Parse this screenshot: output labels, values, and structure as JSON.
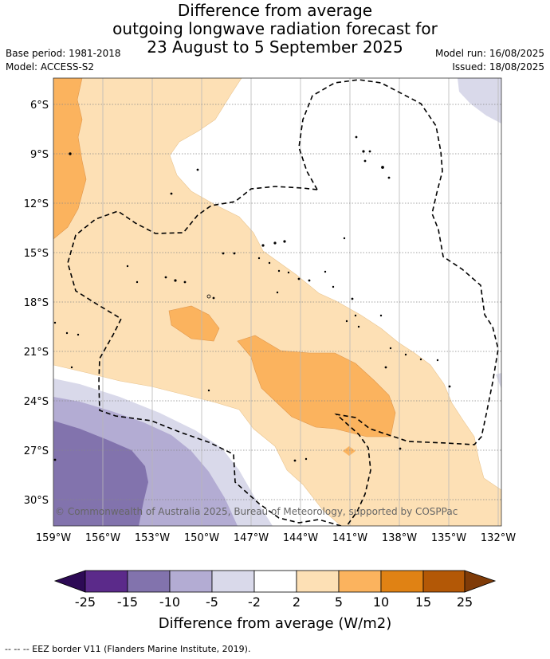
{
  "header": {
    "title_line1": "Difference from average",
    "title_line2": "outgoing longwave radiation forecast for",
    "title_line3": "23 August to 5 September 2025",
    "base_period": "Base period: 1981-2018",
    "model": "Model: ACCESS-S2",
    "model_run": "Model run: 16/08/2025",
    "issued": "Issued: 18/08/2025"
  },
  "map": {
    "copyright": "© Commonwealth of Australia 2025, Bureau of Meteorology, supported by COSPPac",
    "lat_labels": [
      "6°S",
      "9°S",
      "12°S",
      "15°S",
      "18°S",
      "21°S",
      "24°S",
      "27°S",
      "30°S"
    ],
    "lon_labels": [
      "159°W",
      "156°W",
      "153°W",
      "150°W",
      "147°W",
      "144°W",
      "141°W",
      "138°W",
      "135°W",
      "132°W"
    ]
  },
  "colorbar": {
    "title": "Difference from average (W/m2)",
    "tick_labels": [
      "-25",
      "-15",
      "-10",
      "-5",
      "-2",
      "2",
      "5",
      "10",
      "15",
      "25"
    ],
    "colors": [
      "#2d0a55",
      "#5b2a8a",
      "#8273ad",
      "#b3acd3",
      "#d9d9ea",
      "#ffffff",
      "#fde0b5",
      "#fbb35e",
      "#e08214",
      "#b35806",
      "#7f3b08"
    ]
  },
  "footer": {
    "legend": "--  --  -- EEZ border V11 (Flanders Marine Institute, 2019)."
  }
}
